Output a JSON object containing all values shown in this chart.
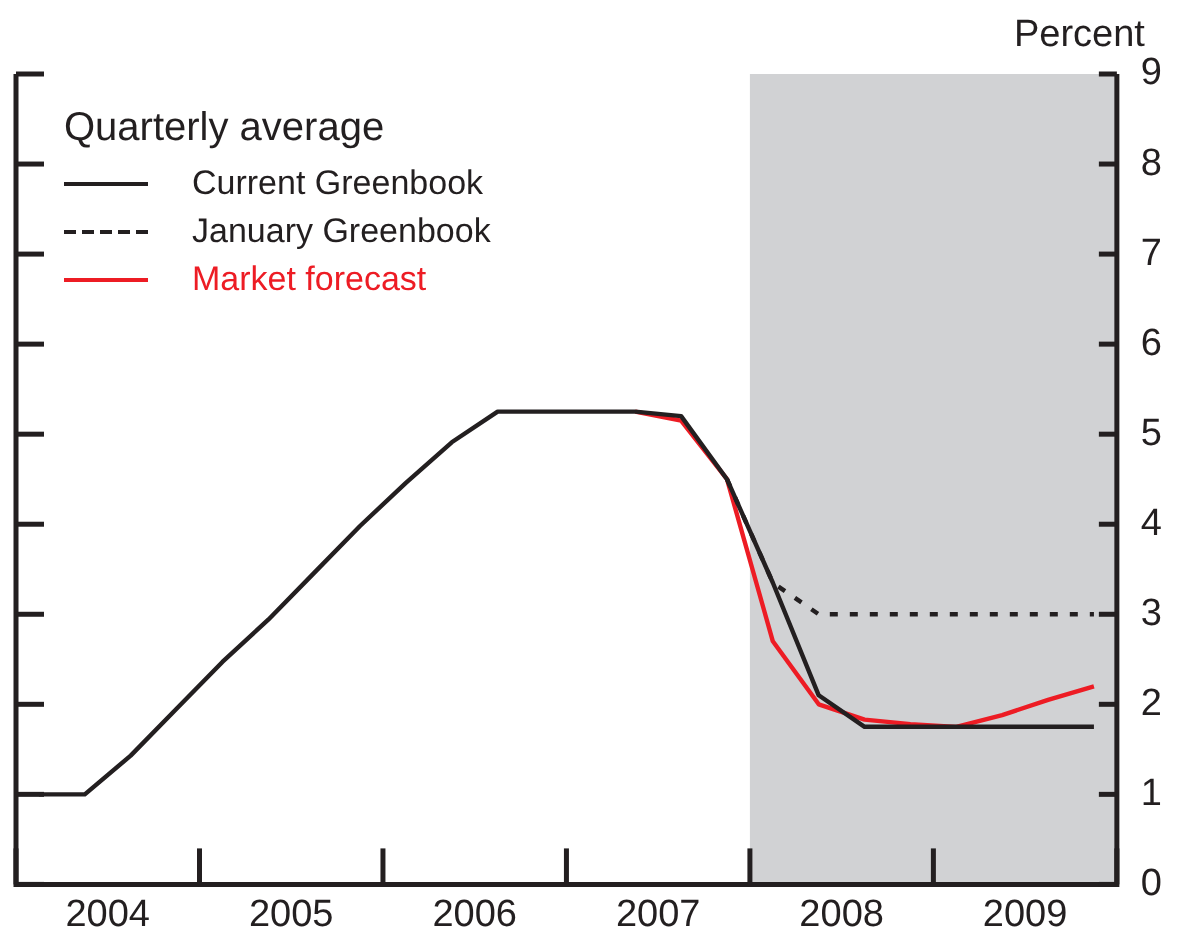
{
  "chart_data": {
    "type": "line",
    "ylabel": "Percent",
    "legend_title": "Quarterly average",
    "xlim": [
      2004,
      2010
    ],
    "xticks": [
      {
        "value": 2004.5,
        "label": "2004"
      },
      {
        "value": 2005.5,
        "label": "2005"
      },
      {
        "value": 2006.5,
        "label": "2006"
      },
      {
        "value": 2007.5,
        "label": "2007"
      },
      {
        "value": 2008.5,
        "label": "2008"
      },
      {
        "value": 2009.5,
        "label": "2009"
      }
    ],
    "ylim": [
      0,
      9
    ],
    "yticks": [
      0,
      1,
      2,
      3,
      4,
      5,
      6,
      7,
      8,
      9
    ],
    "grid": false,
    "legend": "top left",
    "marker": "none",
    "bands": [
      {
        "axis": "x",
        "from": 2008,
        "to": 2010,
        "color": "#d1d2d4"
      }
    ],
    "series": [
      {
        "name": "Current Greenbook",
        "color": "#231f20",
        "line_style": "solid",
        "x": [
          2004.125,
          2004.375,
          2004.625,
          2004.875,
          2005.125,
          2005.375,
          2005.625,
          2005.875,
          2006.125,
          2006.375,
          2006.625,
          2006.875,
          2007.125,
          2007.375,
          2007.625,
          2007.875,
          2008.125,
          2008.375,
          2008.625,
          2008.875,
          2009.125,
          2009.375,
          2009.625,
          2009.875
        ],
        "values": [
          1.0,
          1.0,
          1.43,
          1.95,
          2.47,
          2.94,
          3.46,
          3.98,
          4.46,
          4.91,
          5.25,
          5.25,
          5.25,
          5.25,
          5.2,
          4.5,
          3.35,
          2.1,
          1.75,
          1.75,
          1.75,
          1.75,
          1.75,
          1.75
        ]
      },
      {
        "name": "January Greenbook",
        "color": "#231f20",
        "line_style": "dotted",
        "x": [
          2007.875,
          2008.125,
          2008.375,
          2008.625,
          2008.875,
          2009.125,
          2009.375,
          2009.625,
          2009.875
        ],
        "values": [
          4.5,
          3.35,
          3.0,
          3.0,
          3.0,
          3.0,
          3.0,
          3.0,
          3.0
        ]
      },
      {
        "name": "Market forecast",
        "color": "#ed1c24",
        "line_style": "solid",
        "x": [
          2007.375,
          2007.625,
          2007.875,
          2008.125,
          2008.375,
          2008.625,
          2008.875,
          2009.125,
          2009.375,
          2009.625,
          2009.875
        ],
        "values": [
          5.25,
          5.15,
          4.5,
          2.7,
          2.0,
          1.83,
          1.78,
          1.75,
          1.88,
          2.05,
          2.2
        ]
      }
    ]
  }
}
